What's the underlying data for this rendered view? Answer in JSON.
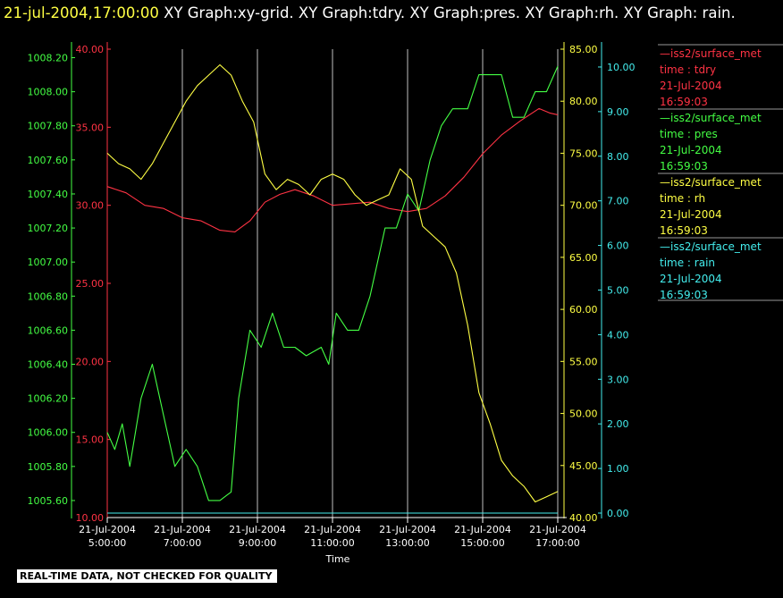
{
  "header": {
    "timestamp": "21-jul-2004,17:00:00",
    "title_rest": "  XY Graph:xy-grid.  XY Graph:tdry.  XY Graph:pres.  XY Graph:rh.  XY Graph: rain."
  },
  "footer": {
    "qc_note": "REAL-TIME DATA, NOT CHECKED FOR QUALITY"
  },
  "colors": {
    "tdry": "#ff3344",
    "pres": "#44ff44",
    "rh": "#ffff44",
    "rain": "#44eeee",
    "grid": "#ffffff",
    "axis_text": "#ffffff"
  },
  "chart_data": {
    "type": "line",
    "xlabel": "Time",
    "x_ticks": [
      {
        "date": "21-Jul-2004",
        "time": "5:00:00",
        "hour": 5
      },
      {
        "date": "21-Jul-2004",
        "time": "7:00:00",
        "hour": 7
      },
      {
        "date": "21-Jul-2004",
        "time": "9:00:00",
        "hour": 9
      },
      {
        "date": "21-Jul-2004",
        "time": "11:00:00",
        "hour": 11
      },
      {
        "date": "21-Jul-2004",
        "time": "13:00:00",
        "hour": 13
      },
      {
        "date": "21-Jul-2004",
        "time": "15:00:00",
        "hour": 15
      },
      {
        "date": "21-Jul-2004",
        "time": "17:00:00",
        "hour": 17
      }
    ],
    "xlim": [
      5,
      17
    ],
    "grid": "vertical",
    "legend_position": "right",
    "axes": {
      "pres": {
        "ylim": [
          1005.5,
          1008.25
        ],
        "ticks": [
          "1005.60",
          "1005.80",
          "1006.00",
          "1006.20",
          "1006.40",
          "1006.60",
          "1006.80",
          "1007.00",
          "1007.20",
          "1007.40",
          "1007.60",
          "1007.80",
          "1008.00",
          "1008.20"
        ]
      },
      "tdry": {
        "ylim": [
          10,
          40
        ],
        "ticks": [
          "10.00",
          "15.00",
          "20.00",
          "25.00",
          "30.00",
          "35.00",
          "40.00"
        ]
      },
      "rh": {
        "ylim": [
          40,
          85
        ],
        "ticks": [
          "40.00",
          "45.00",
          "50.00",
          "55.00",
          "60.00",
          "65.00",
          "70.00",
          "75.00",
          "80.00",
          "85.00"
        ]
      },
      "rain": {
        "ylim": [
          -0.1,
          10.4
        ],
        "ticks": [
          "0.00",
          "1.00",
          "2.00",
          "3.00",
          "4.00",
          "5.00",
          "6.00",
          "7.00",
          "8.00",
          "9.00",
          "10.00"
        ]
      }
    },
    "series": [
      {
        "key": "tdry",
        "legend": {
          "name": "—iss2/surface_met",
          "field": "time : tdry",
          "date": "21-Jul-2004",
          "time": "16:59:03"
        },
        "x": [
          5,
          5.5,
          6,
          6.5,
          7,
          7.5,
          8,
          8.4,
          8.8,
          9.2,
          9.6,
          10,
          10.5,
          11,
          11.5,
          12,
          12.5,
          13,
          13.5,
          14,
          14.5,
          15,
          15.5,
          16,
          16.5,
          16.8,
          17
        ],
        "y": [
          31.2,
          30.8,
          30.0,
          29.8,
          29.2,
          29.0,
          28.4,
          28.3,
          29.0,
          30.2,
          30.7,
          31.0,
          30.6,
          30.0,
          30.1,
          30.2,
          29.8,
          29.6,
          29.8,
          30.6,
          31.8,
          33.3,
          34.5,
          35.4,
          36.2,
          35.9,
          35.8
        ]
      },
      {
        "key": "pres",
        "legend": {
          "name": "—iss2/surface_met",
          "field": "time : pres",
          "date": "21-Jul-2004",
          "time": "16:59:03"
        },
        "x": [
          5,
          5.2,
          5.4,
          5.6,
          5.9,
          6.2,
          6.5,
          6.8,
          7.1,
          7.4,
          7.7,
          8.0,
          8.3,
          8.5,
          8.8,
          9.1,
          9.4,
          9.7,
          10.0,
          10.3,
          10.7,
          10.9,
          11.1,
          11.4,
          11.7,
          12.0,
          12.2,
          12.4,
          12.7,
          13.0,
          13.3,
          13.6,
          13.9,
          14.2,
          14.6,
          14.9,
          15.2,
          15.5,
          15.8,
          16.1,
          16.4,
          16.7,
          17
        ],
        "y": [
          1006.0,
          1005.9,
          1006.05,
          1005.8,
          1006.2,
          1006.4,
          1006.1,
          1005.8,
          1005.9,
          1005.8,
          1005.6,
          1005.6,
          1005.65,
          1006.2,
          1006.6,
          1006.5,
          1006.7,
          1006.5,
          1006.5,
          1006.45,
          1006.5,
          1006.4,
          1006.7,
          1006.6,
          1006.6,
          1006.8,
          1007.0,
          1007.2,
          1007.2,
          1007.4,
          1007.3,
          1007.6,
          1007.8,
          1007.9,
          1007.9,
          1008.1,
          1008.1,
          1008.1,
          1007.85,
          1007.85,
          1008.0,
          1008.0,
          1008.15
        ]
      },
      {
        "key": "rh",
        "legend": {
          "name": "—iss2/surface_met",
          "field": "time : rh",
          "date": "21-Jul-2004",
          "time": "16:59:03"
        },
        "x": [
          5,
          5.3,
          5.6,
          5.9,
          6.2,
          6.5,
          6.8,
          7.1,
          7.4,
          7.7,
          8.0,
          8.3,
          8.6,
          8.9,
          9.2,
          9.5,
          9.8,
          10.1,
          10.4,
          10.7,
          11.0,
          11.3,
          11.6,
          11.9,
          12.2,
          12.5,
          12.8,
          13.1,
          13.4,
          13.7,
          14.0,
          14.3,
          14.6,
          14.9,
          15.2,
          15.5,
          15.8,
          16.1,
          16.4,
          16.7,
          17
        ],
        "y": [
          75.0,
          74.0,
          73.5,
          72.5,
          74.0,
          76.0,
          78.0,
          80.0,
          81.5,
          82.5,
          83.5,
          82.5,
          80.0,
          78.0,
          73.0,
          71.5,
          72.5,
          72.0,
          71.0,
          72.5,
          73.0,
          72.5,
          71.0,
          70.0,
          70.5,
          71.0,
          73.5,
          72.5,
          68.0,
          67.0,
          66.0,
          63.5,
          58.5,
          52.0,
          49.0,
          45.5,
          44.0,
          43.0,
          41.5,
          42.0,
          42.5
        ]
      },
      {
        "key": "rain",
        "legend": {
          "name": "—iss2/surface_met",
          "field": "time : rain",
          "date": "21-Jul-2004",
          "time": "16:59:03"
        },
        "x": [
          5,
          17
        ],
        "y": [
          0.0,
          0.0
        ]
      }
    ]
  }
}
